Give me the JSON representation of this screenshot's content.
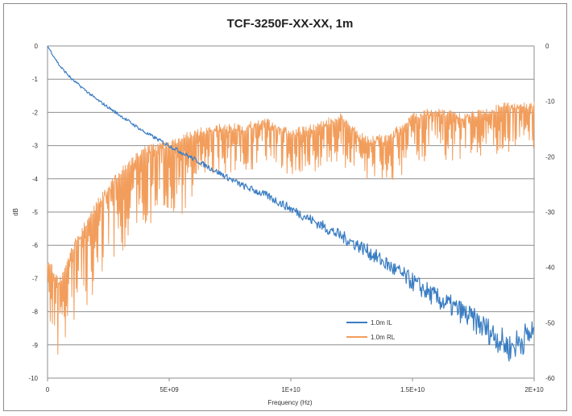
{
  "chart_data": {
    "type": "line",
    "title": "TCF-3250F-XX-XX, 1m",
    "xlabel": "Frequency (Hz)",
    "ylabel": "dB",
    "y2label": "",
    "xlim": [
      0,
      20000000000
    ],
    "ylim": [
      -10,
      0
    ],
    "y2lim": [
      -60,
      0
    ],
    "x_tick_values": [
      0,
      5000000000,
      10000000000,
      15000000000,
      20000000000
    ],
    "x_tick_labels": [
      "0",
      "5E+09",
      "1E+10",
      "1.5E+10",
      "2E+10"
    ],
    "y_tick_values": [
      0,
      -1,
      -2,
      -3,
      -4,
      -5,
      -6,
      -7,
      -8,
      -9,
      -10
    ],
    "y_tick_labels": [
      "0",
      "-1",
      "-2",
      "-3",
      "-4",
      "-5",
      "-6",
      "-7",
      "-8",
      "-9",
      "-10"
    ],
    "y2_tick_values": [
      0,
      -10,
      -20,
      -30,
      -40,
      -50,
      -60
    ],
    "y2_tick_labels": [
      "0",
      "-10",
      "-20",
      "-30",
      "-40",
      "-50",
      "-60"
    ],
    "grid": "horizontal",
    "legend_position": "inside-bottom-right",
    "series": [
      {
        "name": "1.0m IL",
        "axis": "left",
        "color": "#3a7dc2",
        "x": [
          0,
          500000000,
          1000000000,
          2000000000,
          3000000000,
          4000000000,
          5000000000,
          6000000000,
          7000000000,
          8000000000,
          9000000000,
          10000000000,
          11000000000,
          12000000000,
          13000000000,
          14000000000,
          15000000000,
          16000000000,
          17000000000,
          18000000000,
          19000000000,
          20000000000
        ],
        "values": [
          0,
          -0.6,
          -1.0,
          -1.6,
          -2.1,
          -2.6,
          -3.0,
          -3.4,
          -3.8,
          -4.2,
          -4.5,
          -4.9,
          -5.3,
          -5.7,
          -6.1,
          -6.6,
          -7.1,
          -7.6,
          -8.0,
          -8.5,
          -9.1,
          -8.6
        ]
      },
      {
        "name": "1.0m RL",
        "axis": "right",
        "color": "#f29d5b",
        "x": [
          0,
          500000000,
          1000000000,
          1500000000,
          2000000000,
          3000000000,
          4000000000,
          5000000000,
          6000000000,
          7000000000,
          8000000000,
          9000000000,
          10000000000,
          11000000000,
          12000000000,
          13000000000,
          14000000000,
          15000000000,
          16000000000,
          17000000000,
          18000000000,
          19000000000,
          20000000000
        ],
        "values": [
          -38,
          -42,
          -36,
          -32,
          -28,
          -22,
          -18,
          -17,
          -15,
          -14,
          -14,
          -13,
          -15,
          -14,
          -12,
          -16,
          -16,
          -12,
          -11,
          -12,
          -11,
          -10,
          -10
        ]
      }
    ]
  }
}
